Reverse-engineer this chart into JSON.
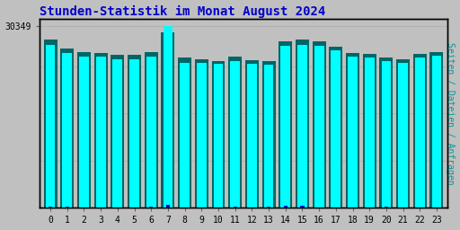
{
  "title": "Stunden-Statistik im Monat August 2024",
  "title_color": "#0000CC",
  "ylabel_right": "Seiten / Dateien / Anfragen",
  "ylabel_right_color": "#009999",
  "ytick_label": "30349",
  "background_color": "#C0C0C0",
  "plot_bg_color": "#C0C0C0",
  "hours": [
    0,
    1,
    2,
    3,
    4,
    5,
    6,
    7,
    8,
    9,
    10,
    11,
    12,
    13,
    14,
    15,
    16,
    17,
    18,
    19,
    20,
    21,
    22,
    23
  ],
  "seiten": [
    27200,
    25800,
    25200,
    25200,
    24800,
    24800,
    25200,
    30349,
    24200,
    24200,
    24000,
    24400,
    24000,
    23800,
    27000,
    27200,
    27000,
    26200,
    25200,
    25000,
    24400,
    24200,
    25000,
    25400
  ],
  "dateien": [
    28000,
    26500,
    26000,
    25800,
    25500,
    25500,
    26000,
    29200,
    25000,
    24800,
    24500,
    25200,
    24600,
    24400,
    27800,
    28000,
    27800,
    26800,
    25800,
    25600,
    25000,
    24800,
    25600,
    26000
  ],
  "anfragen": [
    180,
    140,
    110,
    120,
    120,
    130,
    140,
    580,
    110,
    120,
    100,
    280,
    120,
    140,
    380,
    330,
    110,
    120,
    120,
    130,
    190,
    120,
    120,
    110
  ],
  "bar_color_seiten": "#00FFFF",
  "bar_color_dateien": "#006666",
  "bar_color_anfragen": "#0000CC",
  "ylim_max": 31500,
  "bar_width": 0.8,
  "grid_color": "#AAAAAA",
  "border_color": "#000000",
  "font_family": "monospace",
  "font_size_title": 10,
  "font_size_ticks": 7,
  "font_size_ylabel": 7
}
